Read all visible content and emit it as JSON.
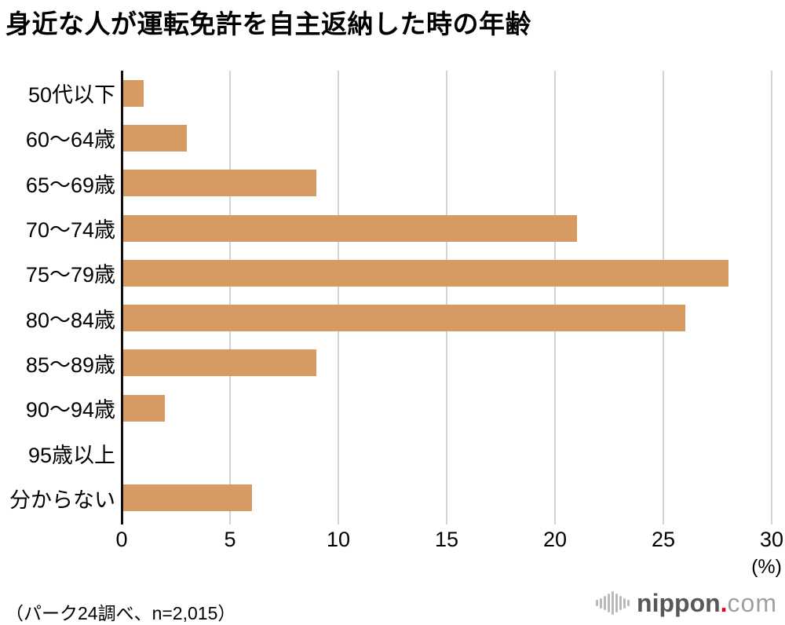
{
  "chart_data": {
    "type": "bar",
    "orientation": "horizontal",
    "title": "身近な人が運転免許を自主返納した時の年齢",
    "categories": [
      "50代以下",
      "60〜64歳",
      "65〜69歳",
      "70〜74歳",
      "75〜79歳",
      "80〜84歳",
      "85〜89歳",
      "90〜94歳",
      "95歳以上",
      "分からない"
    ],
    "values": [
      1,
      3,
      9,
      21,
      28,
      26,
      9,
      2,
      0,
      6
    ],
    "xlabel": "(%)",
    "ylabel": "",
    "xlim": [
      0,
      30
    ],
    "xticks": [
      0,
      5,
      10,
      15,
      20,
      25,
      30
    ],
    "grid": true,
    "legend": false,
    "bar_color": "#d79a62",
    "gridline_color": "#d4d4d4",
    "axis_color": "#111111"
  },
  "footer": {
    "note": "（パーク24調べ、n=2,015）"
  },
  "logo": {
    "name": "nippon",
    "dot": ".",
    "tld": "com",
    "icon": "waveform-icon",
    "colors": {
      "name": "#595757",
      "dot": "#e60012",
      "tld": "#9fa0a0",
      "icon": "#b9b9b9"
    },
    "wave_heights": [
      8,
      13,
      18,
      24,
      30,
      24,
      18,
      13,
      8
    ]
  }
}
